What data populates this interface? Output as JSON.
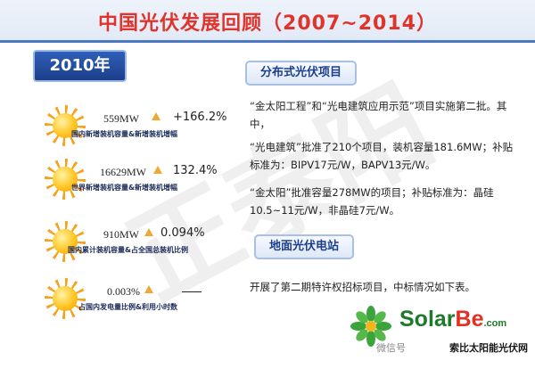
{
  "header": {
    "title": "中国光伏发展回顾（2007~2014）"
  },
  "year_label": "2010年",
  "stats": [
    {
      "value": "559MW",
      "change": "+166.2%",
      "caption": "国内新增装机容量&新增装机增幅"
    },
    {
      "value": "16629MW",
      "change": "132.4%",
      "caption": "世界新增装机容量&新增装机增幅"
    },
    {
      "value": "910MW",
      "change": "0.094%",
      "caption": "国内累计装机容量&占全国总装机比例"
    },
    {
      "value": "0.003%",
      "change": "",
      "caption": "占国内发电量比例&利用小时数"
    }
  ],
  "sections": {
    "distributed": {
      "title": "分布式光伏项目",
      "paragraphs": [
        "“金太阳工程”和“光电建筑应用示范”项目实施第二批。其中，",
        "“光电建筑”批准了210个项目，装机容量181.6MW；补贴标准为：BIPV17元/W，BAPV13元/W。",
        "“金太阳”批准容量278MW的项目；补贴标准为：晶硅10.5~11元/W，非晶硅7元/W。"
      ]
    },
    "ground": {
      "title": "地面光伏电站",
      "paragraphs": [
        "开展了第二期特许权招标项目，中标情况如下表。"
      ]
    }
  },
  "logo": {
    "name_a": "Solar",
    "name_b": "Be",
    "name_c": ".com",
    "subtitle": "索比太阳能光伏网",
    "wechat": "微信号"
  },
  "colors": {
    "title": "#e0332b",
    "accent": "#1b3f8e",
    "sun": "#ffc522"
  }
}
